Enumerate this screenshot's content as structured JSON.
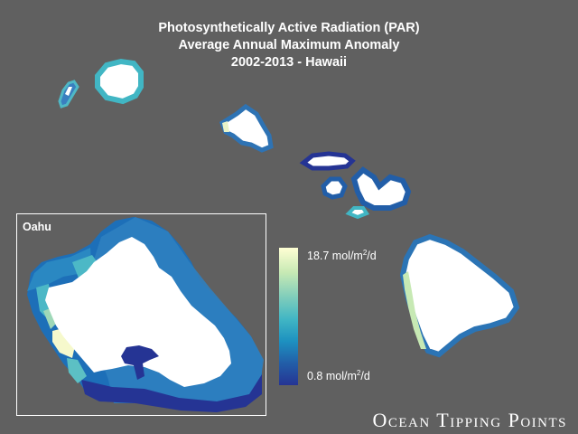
{
  "title": {
    "line1": "Photosynthetically Active Radiation (PAR)",
    "line2": "Average Annual Maximum Anomaly",
    "line3": "2002-2013 - Hawaii"
  },
  "inset": {
    "label": "Oahu"
  },
  "legend": {
    "max_label": "18.7 mol/m",
    "min_label": "0.8 mol/m",
    "unit_sup": "2",
    "unit_suffix": "/d",
    "max_value": 18.7,
    "min_value": 0.8,
    "colors": [
      "#ffffd4",
      "#c7e9b4",
      "#7fcdbb",
      "#41b6c4",
      "#1d91c0",
      "#225ea8",
      "#253494"
    ]
  },
  "brand": "Ocean Tipping Points",
  "colors": {
    "background": "#606060",
    "land": "#ffffff",
    "high": "#ffffd4",
    "mid": "#41b6c4",
    "low": "#253494"
  }
}
